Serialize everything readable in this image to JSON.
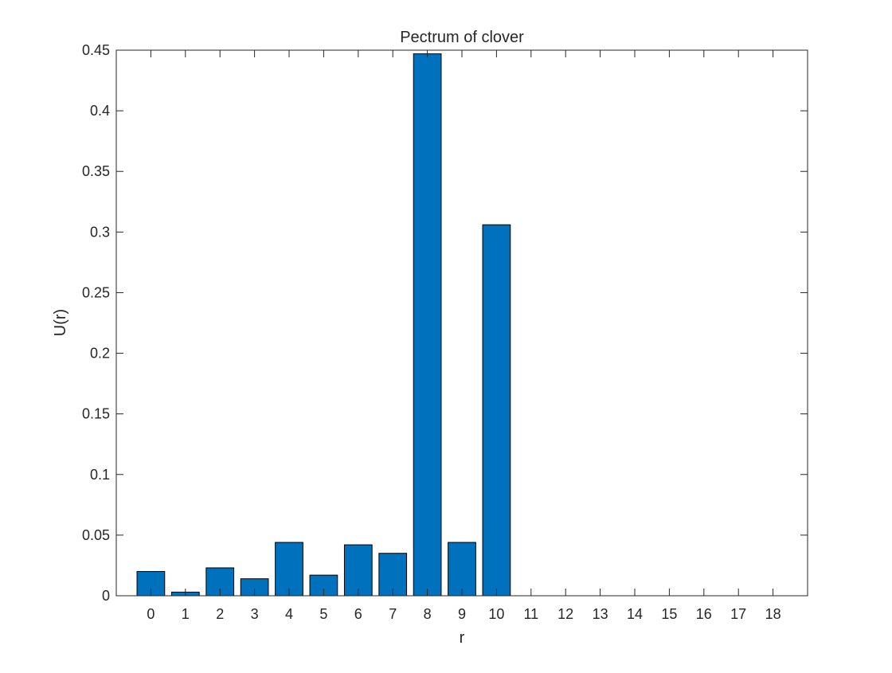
{
  "chart_data": {
    "type": "bar",
    "title": "Pectrum of clover",
    "xlabel": "r",
    "ylabel": "U(r)",
    "categories": [
      "0",
      "1",
      "2",
      "3",
      "4",
      "5",
      "6",
      "7",
      "8",
      "9",
      "10",
      "11",
      "12",
      "13",
      "14",
      "15",
      "16",
      "17",
      "18"
    ],
    "values": [
      0.02,
      0.003,
      0.023,
      0.014,
      0.044,
      0.017,
      0.042,
      0.035,
      0.447,
      0.044,
      0.306,
      0,
      0,
      0,
      0,
      0,
      0,
      0,
      0
    ],
    "x_range": [
      -1,
      19
    ],
    "ylim": [
      0,
      0.45
    ],
    "yticks": [
      0,
      0.05,
      0.1,
      0.15,
      0.2,
      0.25,
      0.3,
      0.35,
      0.4,
      0.45
    ],
    "ytick_labels": [
      "0",
      "0.05",
      "0.1",
      "0.15",
      "0.2",
      "0.25",
      "0.3",
      "0.35",
      "0.4",
      "0.45"
    ],
    "grid": false,
    "legend": "none",
    "bar_color": "#0072BD",
    "bar_edge_color": "#000000"
  }
}
